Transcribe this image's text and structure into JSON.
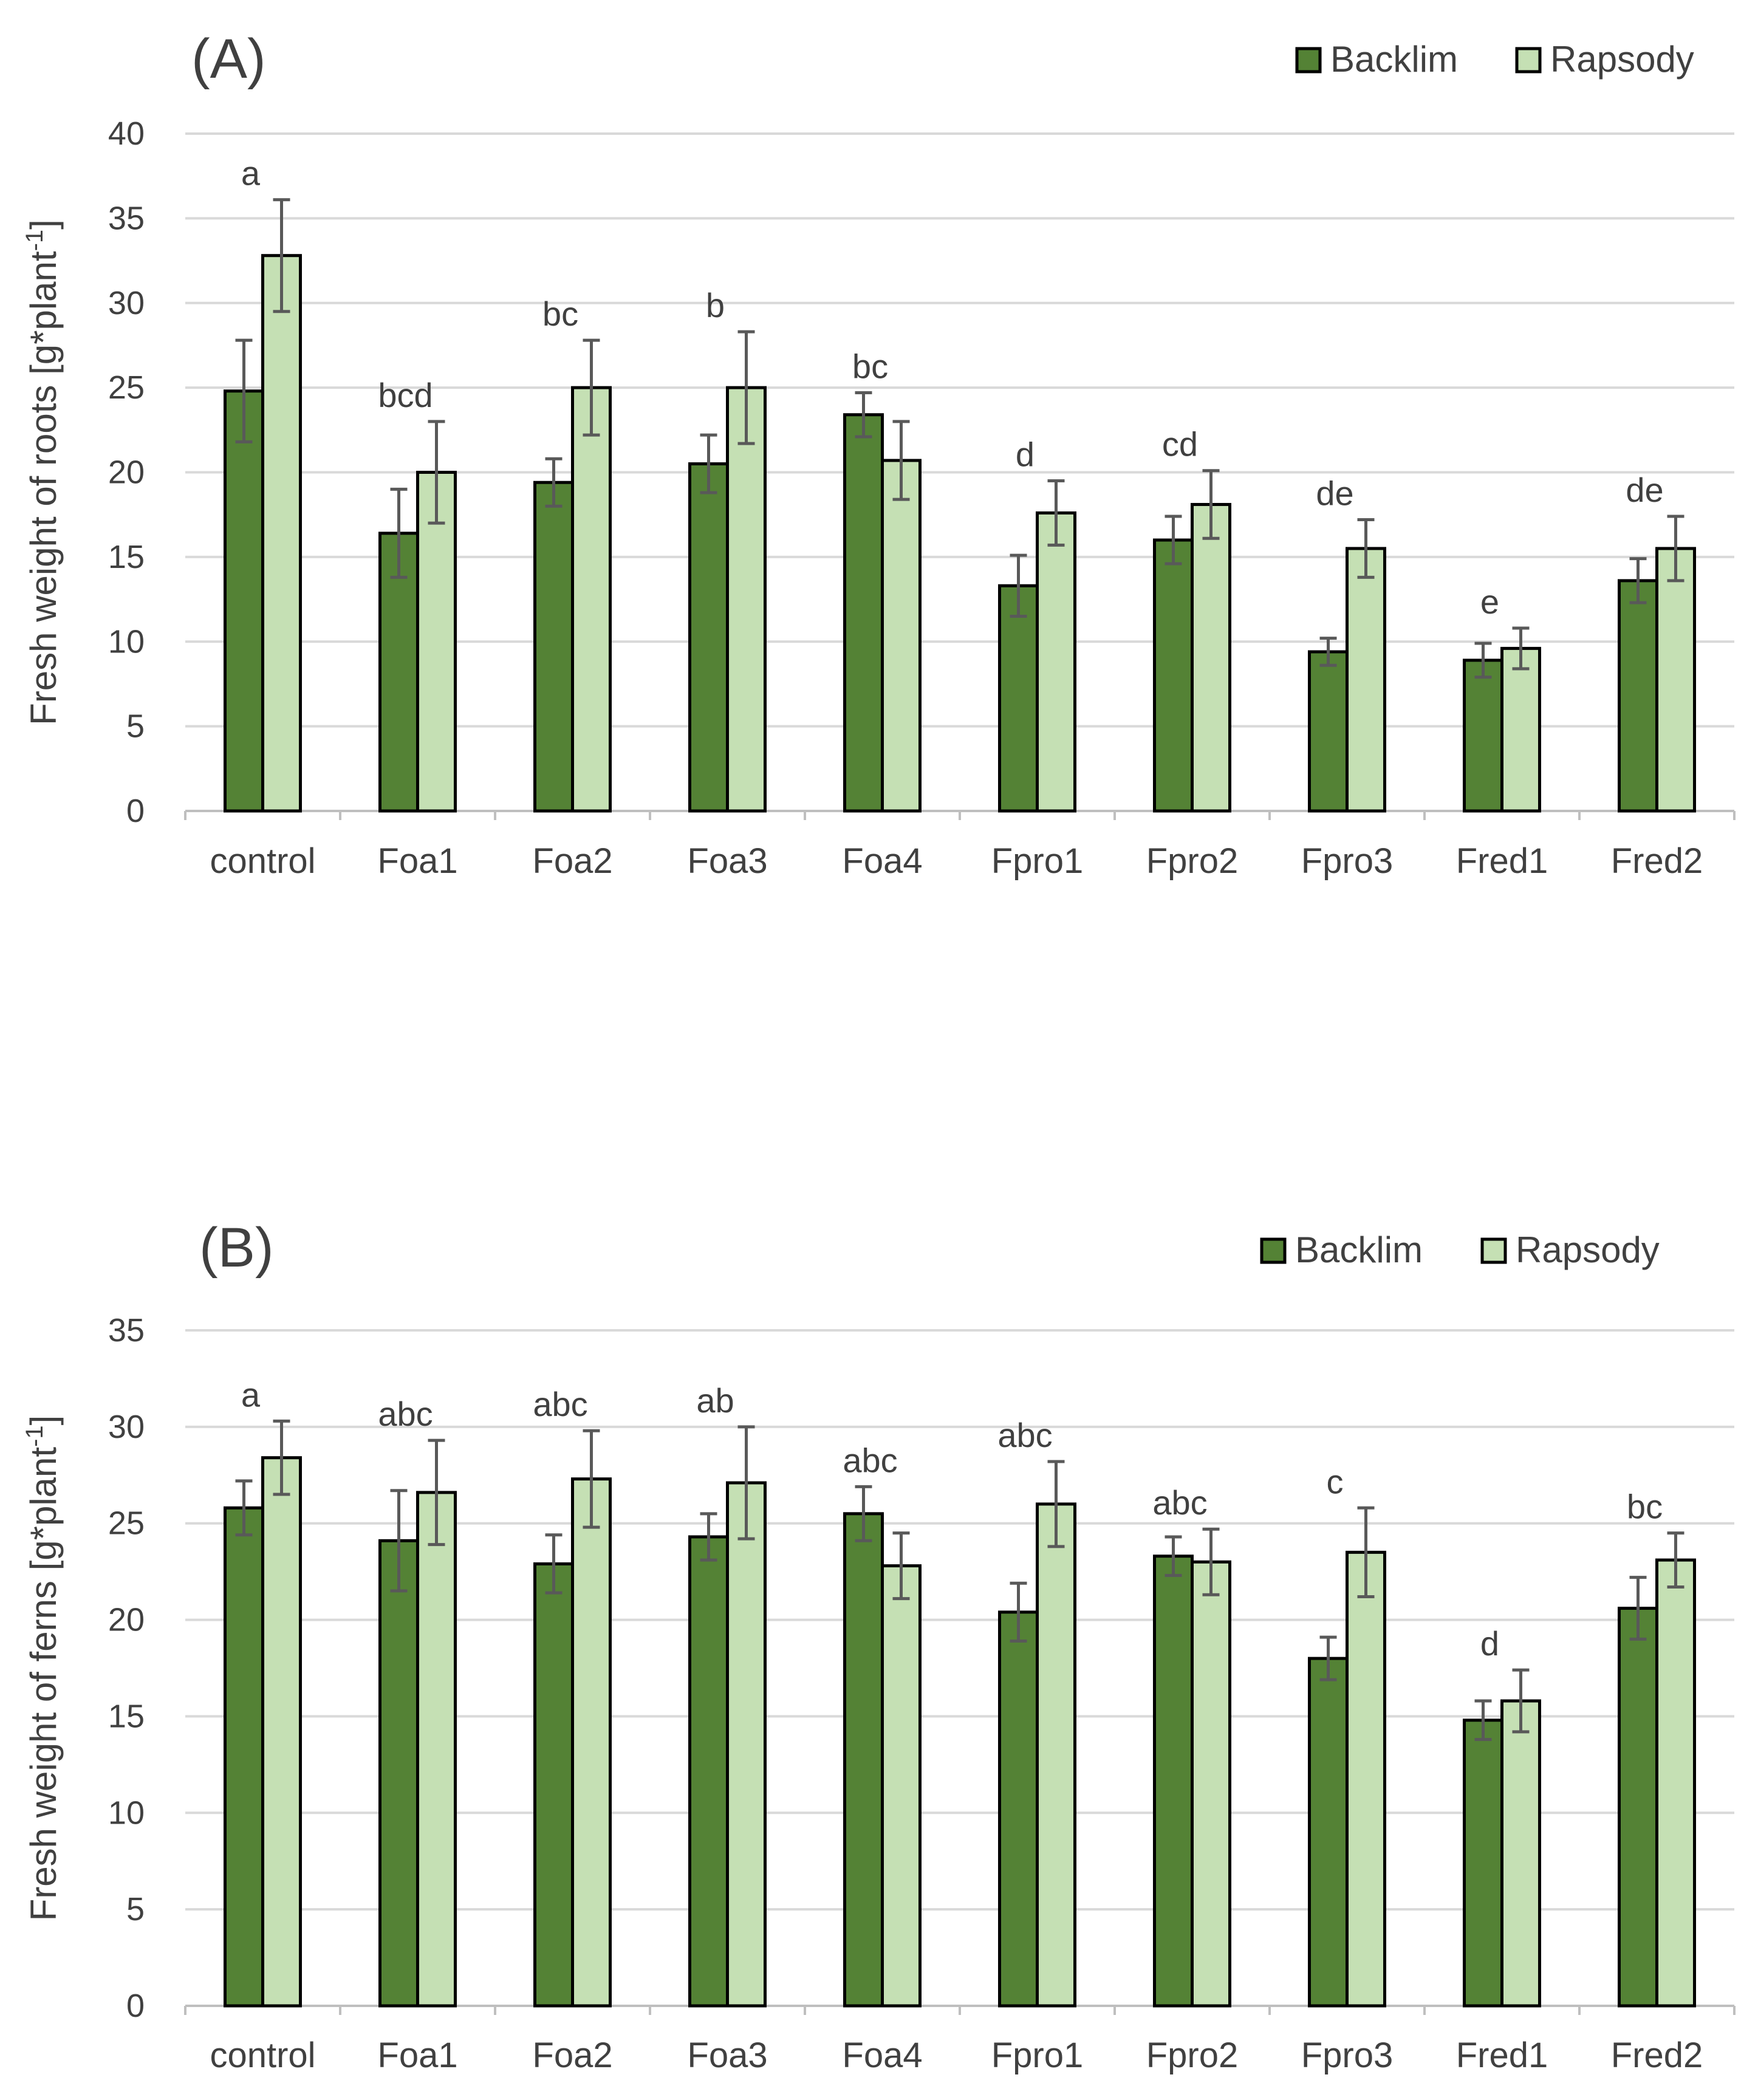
{
  "chart_data": [
    {
      "panel": "(A)",
      "type": "bar",
      "title": "",
      "ylabel": "Fresh weight of roots [g*plant",
      "ylabel_sup": "-1",
      "ylabel_end": "]",
      "ylim": [
        0,
        40
      ],
      "yticks": [
        0,
        5,
        10,
        15,
        20,
        25,
        30,
        35,
        40
      ],
      "categories": [
        "control",
        "Foa1",
        "Foa2",
        "Foa3",
        "Foa4",
        "Fpro1",
        "Fpro2",
        "Fpro3",
        "Fred1",
        "Fred2"
      ],
      "series": [
        {
          "name": "Backlim",
          "color": "#548235",
          "values": [
            24.8,
            16.4,
            19.4,
            20.5,
            23.4,
            13.3,
            16.0,
            9.4,
            8.9,
            13.6
          ],
          "errors": [
            3.0,
            2.6,
            1.4,
            1.7,
            1.3,
            1.8,
            1.4,
            0.8,
            1.0,
            1.3
          ]
        },
        {
          "name": "Rapsody",
          "color": "#c5e0b4",
          "values": [
            32.8,
            20.0,
            25.0,
            25.0,
            20.7,
            17.6,
            18.1,
            15.5,
            9.6,
            15.5
          ],
          "errors": [
            3.3,
            3.0,
            2.8,
            3.3,
            2.3,
            1.9,
            2.0,
            1.7,
            1.2,
            1.9
          ]
        }
      ],
      "annotations": [
        "a",
        "bcd",
        "bc",
        "b",
        "bc",
        "d",
        "cd",
        "de",
        "e",
        "de"
      ],
      "legend": "top-right"
    },
    {
      "panel": "(B)",
      "type": "bar",
      "title": "",
      "ylabel": "Fresh weight of ferns [g*plant",
      "ylabel_sup": "-1",
      "ylabel_end": "]",
      "ylim": [
        0,
        35
      ],
      "yticks": [
        0,
        5,
        10,
        15,
        20,
        25,
        30,
        35
      ],
      "categories": [
        "control",
        "Foa1",
        "Foa2",
        "Foa3",
        "Foa4",
        "Fpro1",
        "Fpro2",
        "Fpro3",
        "Fred1",
        "Fred2"
      ],
      "series": [
        {
          "name": "Backlim",
          "color": "#548235",
          "values": [
            25.8,
            24.1,
            22.9,
            24.3,
            25.5,
            20.4,
            23.3,
            18.0,
            14.8,
            20.6
          ],
          "errors": [
            1.4,
            2.6,
            1.5,
            1.2,
            1.4,
            1.5,
            1.0,
            1.1,
            1.0,
            1.6
          ]
        },
        {
          "name": "Rapsody",
          "color": "#c5e0b4",
          "values": [
            28.4,
            26.6,
            27.3,
            27.1,
            22.8,
            26.0,
            23.0,
            23.5,
            15.8,
            23.1
          ],
          "errors": [
            1.9,
            2.7,
            2.5,
            2.9,
            1.7,
            2.2,
            1.7,
            2.3,
            1.6,
            1.4
          ]
        }
      ],
      "annotations": [
        "a",
        "abc",
        "abc",
        "ab",
        "abc",
        "abc",
        "abc",
        "c",
        "d",
        "bc"
      ],
      "legend": "top-right"
    }
  ]
}
